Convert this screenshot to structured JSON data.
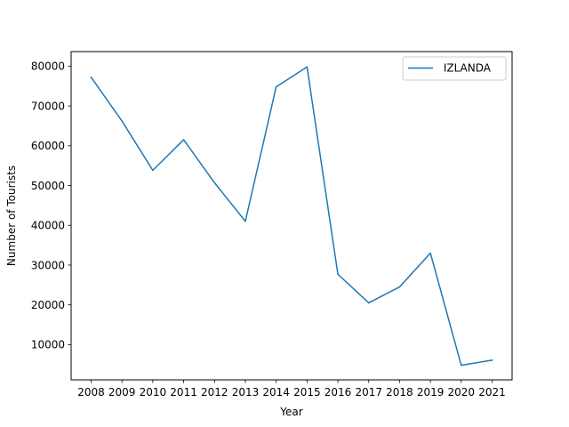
{
  "chart_data": {
    "type": "line",
    "title": "",
    "xlabel": "Year",
    "ylabel": "Number of Tourists",
    "x": [
      "2008",
      "2009",
      "2010",
      "2011",
      "2012",
      "2013",
      "2014",
      "2015",
      "2016",
      "2017",
      "2018",
      "2019",
      "2020",
      "2021"
    ],
    "series": [
      {
        "name": " IZLANDA",
        "color": "#1f77b4",
        "values": [
          77200,
          66200,
          53800,
          61500,
          50700,
          41000,
          74800,
          79800,
          27700,
          20500,
          24500,
          33000,
          4800,
          6100
        ]
      }
    ],
    "ylim": [
      1150,
      83650
    ],
    "yticks": [
      10000,
      20000,
      30000,
      40000,
      50000,
      60000,
      70000,
      80000
    ],
    "yticklabels": [
      "10000",
      "20000",
      "30000",
      "40000",
      "50000",
      "60000",
      "70000",
      "80000"
    ],
    "grid": false,
    "legend": "top-right"
  }
}
